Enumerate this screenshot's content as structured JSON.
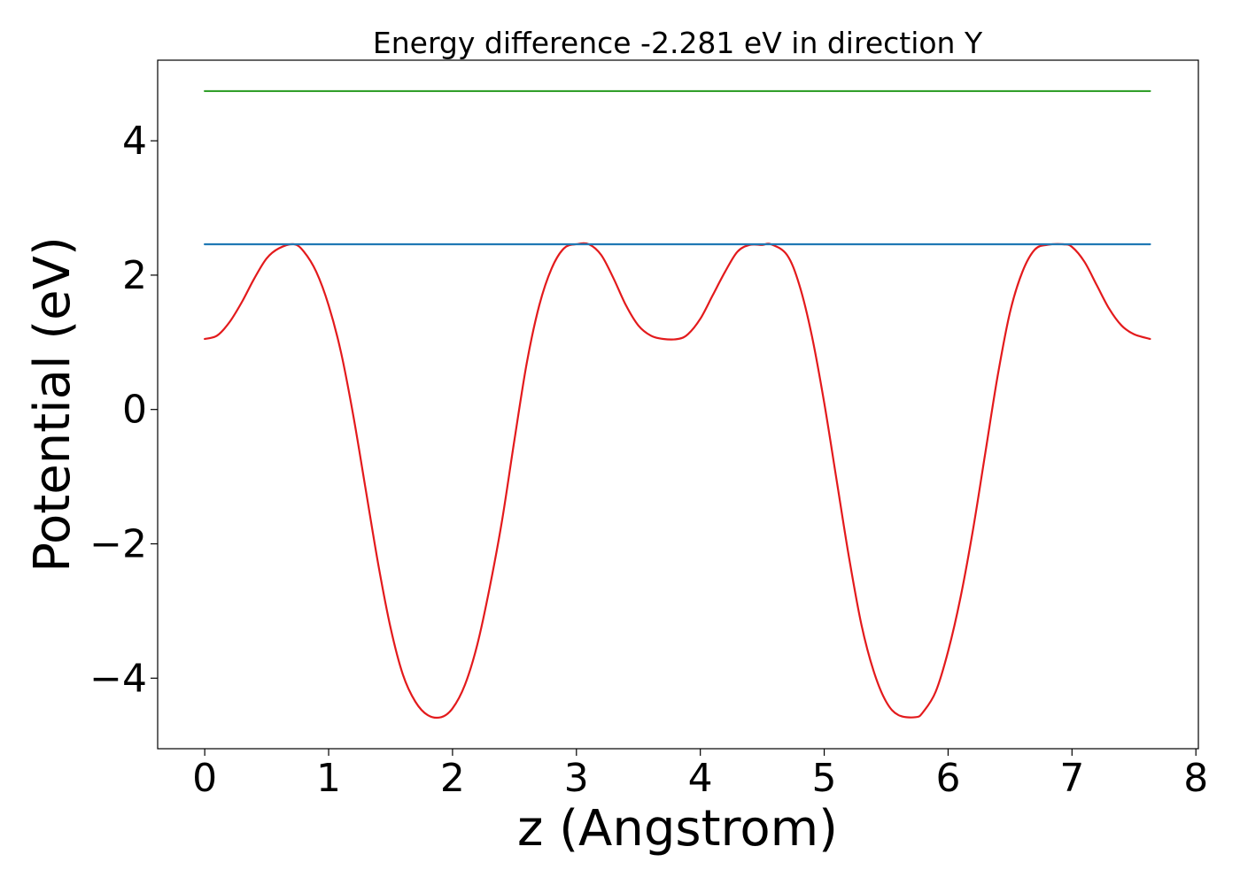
{
  "chart_data": {
    "type": "line",
    "title": "Energy difference -2.281 eV in direction Y",
    "xlabel": "z (Angstrom)",
    "ylabel": "Potential (eV)",
    "xlim": [
      -0.38,
      8.02
    ],
    "ylim": [
      -5.05,
      5.2
    ],
    "x_ticks": [
      0,
      1,
      2,
      3,
      4,
      5,
      6,
      7,
      8
    ],
    "x_tick_labels": [
      "0",
      "1",
      "2",
      "3",
      "4",
      "5",
      "6",
      "7",
      "8"
    ],
    "y_ticks": [
      -4,
      -2,
      0,
      2,
      4
    ],
    "y_tick_labels": [
      "−4",
      "−2",
      "0",
      "2",
      "4"
    ],
    "grid": false,
    "series": [
      {
        "color": "#e31a1c",
        "style": "curve",
        "x": [
          0,
          0.1,
          0.2,
          0.3,
          0.4,
          0.5,
          0.6,
          0.72,
          0.8,
          0.9,
          1.0,
          1.1,
          1.2,
          1.3,
          1.4,
          1.5,
          1.6,
          1.7,
          1.8,
          1.91,
          2.0,
          2.1,
          2.2,
          2.3,
          2.4,
          2.5,
          2.6,
          2.7,
          2.8,
          2.9,
          3.0,
          3.1,
          3.2,
          3.3,
          3.4,
          3.5,
          3.6,
          3.7,
          3.82,
          3.9,
          4.0,
          4.1,
          4.2,
          4.3,
          4.4,
          4.5,
          4.57,
          4.7,
          4.8,
          4.9,
          5.0,
          5.1,
          5.2,
          5.3,
          5.4,
          5.5,
          5.6,
          5.74,
          5.8,
          5.9,
          6.0,
          6.1,
          6.2,
          6.3,
          6.4,
          6.5,
          6.6,
          6.7,
          6.8,
          6.93,
          7.0,
          7.1,
          7.2,
          7.3,
          7.4,
          7.5,
          7.63
        ],
        "y": [
          1.05,
          1.1,
          1.3,
          1.6,
          1.95,
          2.25,
          2.4,
          2.46,
          2.35,
          2.05,
          1.55,
          0.85,
          -0.1,
          -1.2,
          -2.3,
          -3.25,
          -3.95,
          -4.35,
          -4.55,
          -4.58,
          -4.45,
          -4.1,
          -3.5,
          -2.65,
          -1.65,
          -0.45,
          0.7,
          1.55,
          2.1,
          2.4,
          2.46,
          2.46,
          2.3,
          1.95,
          1.55,
          1.25,
          1.1,
          1.05,
          1.05,
          1.12,
          1.35,
          1.7,
          2.05,
          2.35,
          2.45,
          2.45,
          2.46,
          2.3,
          1.85,
          1.1,
          0.1,
          -1.05,
          -2.2,
          -3.2,
          -3.9,
          -4.35,
          -4.55,
          -4.58,
          -4.5,
          -4.2,
          -3.6,
          -2.8,
          -1.8,
          -0.65,
          0.5,
          1.45,
          2.05,
          2.38,
          2.45,
          2.46,
          2.42,
          2.2,
          1.85,
          1.5,
          1.25,
          1.12,
          1.05
        ]
      },
      {
        "color": "#1f78b4",
        "style": "flat",
        "x": [
          0,
          7.63
        ],
        "y": [
          2.46,
          2.46
        ]
      },
      {
        "color": "#33a02c",
        "style": "flat",
        "x": [
          0,
          7.63
        ],
        "y": [
          4.74,
          4.74
        ]
      }
    ]
  }
}
